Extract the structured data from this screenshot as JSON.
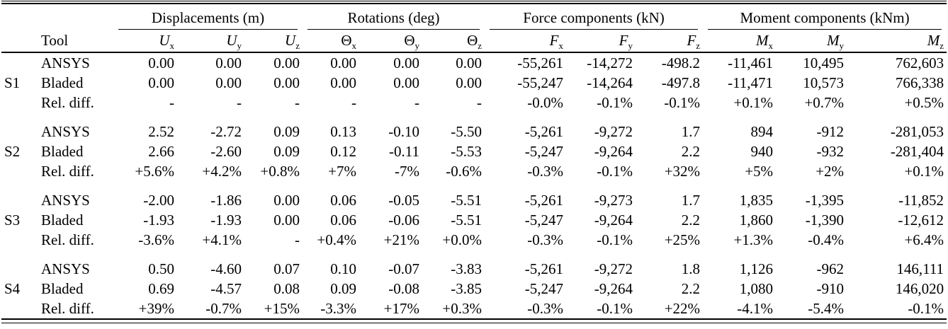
{
  "table": {
    "tool_header": "Tool",
    "groups": [
      {
        "label": "Displacements (m)"
      },
      {
        "label": "Rotations (deg)"
      },
      {
        "label": "Force components (kN)"
      },
      {
        "label": "Moment components (kNm)"
      }
    ],
    "columns": [
      {
        "base": "U",
        "sub": "x"
      },
      {
        "base": "U",
        "sub": "y"
      },
      {
        "base": "U",
        "sub": "z"
      },
      {
        "base": "Θ",
        "sub": "x"
      },
      {
        "base": "Θ",
        "sub": "y"
      },
      {
        "base": "Θ",
        "sub": "z"
      },
      {
        "base": "F",
        "sub": "x"
      },
      {
        "base": "F",
        "sub": "y"
      },
      {
        "base": "F",
        "sub": "z"
      },
      {
        "base": "M",
        "sub": "x"
      },
      {
        "base": "M",
        "sub": "y"
      },
      {
        "base": "M",
        "sub": "z"
      }
    ],
    "sections": [
      {
        "id": "S1",
        "rows": [
          {
            "tool": "ANSYS",
            "values": [
              "0.00",
              "0.00",
              "0.00",
              "0.00",
              "0.00",
              "0.00",
              "-55,261",
              "-14,272",
              "-498.2",
              "-11,461",
              "10,495",
              "762,603"
            ]
          },
          {
            "tool": "Bladed",
            "values": [
              "0.00",
              "0.00",
              "0.00",
              "0.00",
              "0.00",
              "0.00",
              "-55,247",
              "-14,264",
              "-497.8",
              "-11,471",
              "10,573",
              "766,338"
            ]
          },
          {
            "tool": "Rel. diff.",
            "values": [
              "-",
              "-",
              "-",
              "-",
              "-",
              "-",
              "-0.0%",
              "-0.1%",
              "-0.1%",
              "+0.1%",
              "+0.7%",
              "+0.5%"
            ]
          }
        ]
      },
      {
        "id": "S2",
        "rows": [
          {
            "tool": "ANSYS",
            "values": [
              "2.52",
              "-2.72",
              "0.09",
              "0.13",
              "-0.10",
              "-5.50",
              "-5,261",
              "-9,272",
              "1.7",
              "894",
              "-912",
              "-281,053"
            ]
          },
          {
            "tool": "Bladed",
            "values": [
              "2.66",
              "-2.60",
              "0.09",
              "0.12",
              "-0.11",
              "-5.53",
              "-5,247",
              "-9,264",
              "2.2",
              "940",
              "-932",
              "-281,404"
            ]
          },
          {
            "tool": "Rel. diff.",
            "values": [
              "+5.6%",
              "+4.2%",
              "+0.8%",
              "+7%",
              "-7%",
              "-0.6%",
              "-0.3%",
              "-0.1%",
              "+32%",
              "+5%",
              "+2%",
              "+0.1%"
            ]
          }
        ]
      },
      {
        "id": "S3",
        "rows": [
          {
            "tool": "ANSYS",
            "values": [
              "-2.00",
              "-1.86",
              "0.00",
              "0.06",
              "-0.05",
              "-5.51",
              "-5,261",
              "-9,273",
              "1.7",
              "1,835",
              "-1,395",
              "-11,852"
            ]
          },
          {
            "tool": "Bladed",
            "values": [
              "-1.93",
              "-1.93",
              "0.00",
              "0.06",
              "-0.06",
              "-5.51",
              "-5,247",
              "-9,264",
              "2.2",
              "1,860",
              "-1,390",
              "-12,612"
            ]
          },
          {
            "tool": "Rel. diff.",
            "values": [
              "-3.6%",
              "+4.1%",
              "-",
              "+0.4%",
              "+21%",
              "+0.0%",
              "-0.3%",
              "-0.1%",
              "+25%",
              "+1.3%",
              "-0.4%",
              "+6.4%"
            ]
          }
        ]
      },
      {
        "id": "S4",
        "rows": [
          {
            "tool": "ANSYS",
            "values": [
              "0.50",
              "-4.60",
              "0.07",
              "0.10",
              "-0.07",
              "-3.83",
              "-5,261",
              "-9,272",
              "1.8",
              "1,126",
              "-962",
              "146,111"
            ]
          },
          {
            "tool": "Bladed",
            "values": [
              "0.69",
              "-4.57",
              "0.08",
              "0.09",
              "-0.08",
              "-3.85",
              "-5,247",
              "-9,264",
              "2.2",
              "1,080",
              "-910",
              "146,020"
            ]
          },
          {
            "tool": "Rel. diff.",
            "values": [
              "+39%",
              "-0.7%",
              "+15%",
              "-3.3%",
              "+17%",
              "+0.3%",
              "-0.3%",
              "-0.1%",
              "+22%",
              "-4.1%",
              "-5.4%",
              "-0.1%"
            ]
          }
        ]
      }
    ]
  }
}
